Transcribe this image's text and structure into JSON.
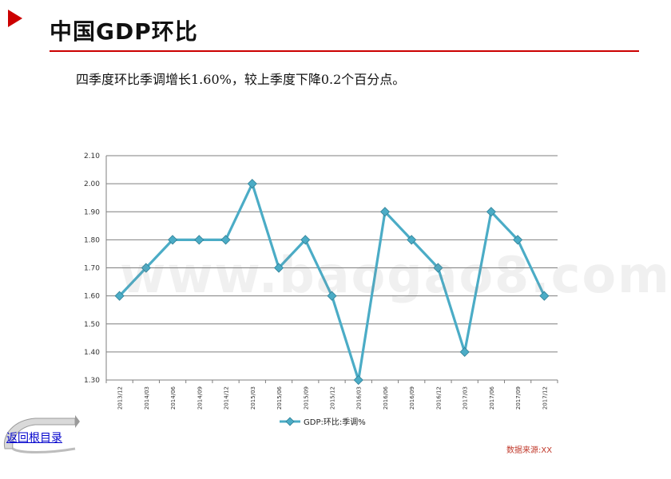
{
  "title": "中国GDP环比",
  "summary": "四季度环比季调增长1.60%，较上季度下降0.2个百分点。",
  "watermark": "www.baogao8.com",
  "back_link_label": "返回根目录",
  "source": "数据来源:XX",
  "colors": {
    "accent": "#cc0000",
    "series": "#4bacc6",
    "link": "#0000cc"
  },
  "icons": {
    "corner": "red-triangle-icon",
    "back": "return-arrow-icon"
  },
  "chart_data": {
    "type": "line",
    "categories": [
      "2013/12",
      "2014/03",
      "2014/06",
      "2014/09",
      "2014/12",
      "2015/03",
      "2015/06",
      "2015/09",
      "2015/12",
      "2016/03",
      "2016/06",
      "2016/09",
      "2016/12",
      "2017/03",
      "2017/06",
      "2017/09",
      "2017/12"
    ],
    "series": [
      {
        "name": "GDP:环比:季调%",
        "values": [
          1.6,
          1.7,
          1.8,
          1.8,
          1.8,
          2.0,
          1.7,
          1.8,
          1.6,
          1.3,
          1.9,
          1.8,
          1.7,
          1.4,
          1.9,
          1.8,
          1.6
        ],
        "color": "#4bacc6"
      }
    ],
    "ylim": [
      1.3,
      2.1
    ],
    "yticks": [
      "1.30",
      "1.40",
      "1.50",
      "1.60",
      "1.70",
      "1.80",
      "1.90",
      "2.00",
      "2.10"
    ],
    "grid": true,
    "legend": "bottom"
  }
}
